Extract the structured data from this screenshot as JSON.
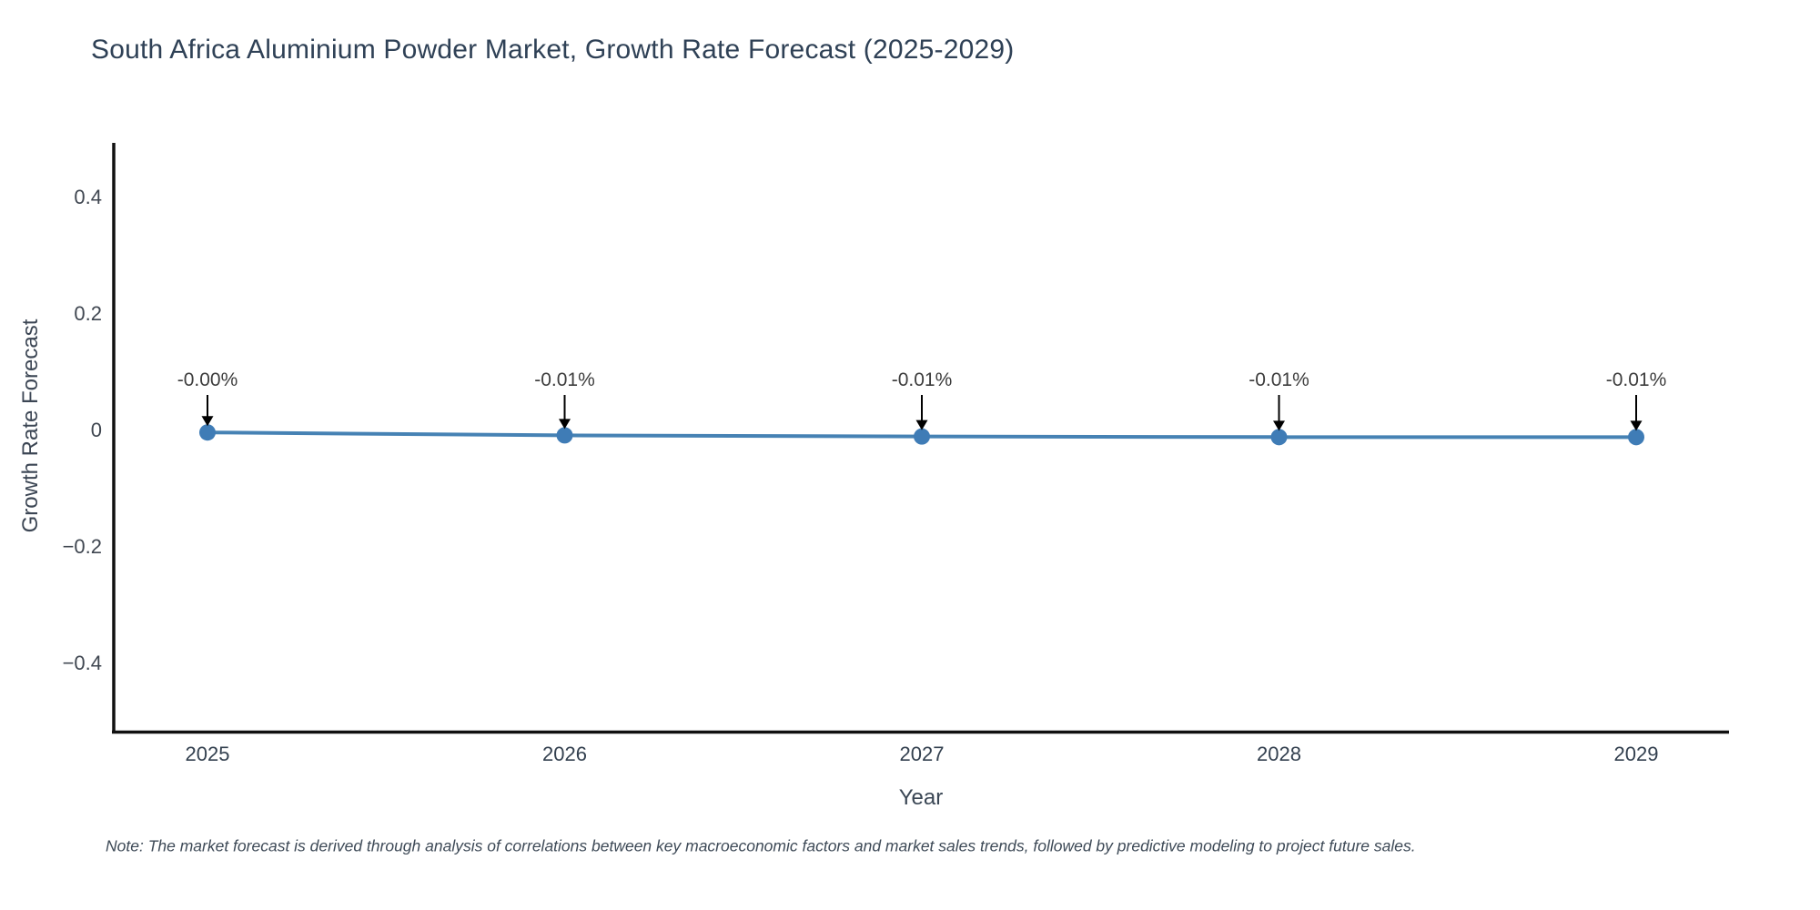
{
  "chart": {
    "title": "South Africa Aluminium Powder Market, Growth Rate Forecast (2025-2029)",
    "ylabel": "Growth Rate Forecast",
    "xlabel": "Year",
    "note": "Note: The market forecast is derived through analysis of correlations between key macroeconomic factors and market sales trends, followed by predictive modeling to project future sales."
  },
  "chart_data": {
    "type": "line",
    "title": "South Africa Aluminium Powder Market, Growth Rate Forecast (2025-2029)",
    "xlabel": "Year",
    "ylabel": "Growth Rate Forecast",
    "categories": [
      "2025",
      "2026",
      "2027",
      "2028",
      "2029"
    ],
    "values": [
      -0.005,
      -0.01,
      -0.012,
      -0.013,
      -0.013
    ],
    "point_labels": [
      "-0.00%",
      "-0.01%",
      "-0.01%",
      "-0.01%",
      "-0.01%"
    ],
    "ytick_values": [
      0.4,
      0.2,
      0,
      -0.2,
      -0.4
    ],
    "ytick_labels": [
      "0.4",
      "0.2",
      "0",
      "−0.2",
      "−0.4"
    ],
    "ylim": [
      -0.52,
      0.49
    ],
    "grid": false,
    "legend": null,
    "colors": {
      "line": "#4682b4",
      "marker": "#3f7cb6",
      "axis": "#111111",
      "tick_text": "#3f4650",
      "xtick_text": "#33404f",
      "annotation_text": "#3d3d3d",
      "arrow": "#000000"
    }
  }
}
